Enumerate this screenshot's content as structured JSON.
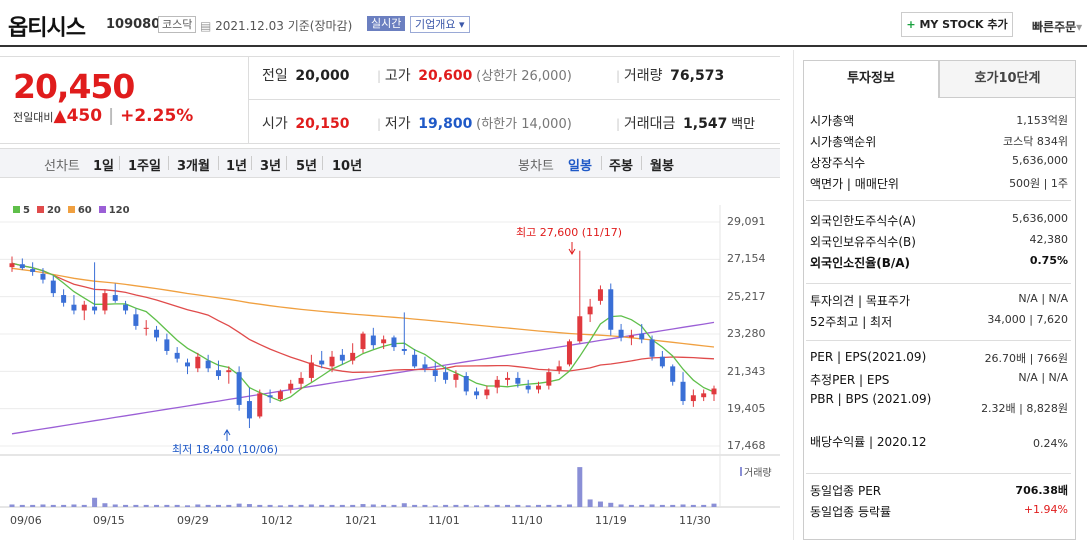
{
  "header": {
    "name": "옵티시스",
    "code": "109080",
    "market": "코스닥",
    "date": "2021.12.03",
    "basis": "기준(장마감)",
    "realtime": "실시간",
    "overview": "기업개요",
    "mystock": "MY STOCK 추가",
    "quick": "빠른주문"
  },
  "price": {
    "current": "20,450",
    "prev_label": "전일대비",
    "change": "450",
    "change_pct": "+2.25%"
  },
  "stats": {
    "prev_label": "전일",
    "prev": "20,000",
    "high_label": "고가",
    "high": "20,600",
    "upper_limit": "(상한가 26,000)",
    "volume_label": "거래량",
    "volume": "76,573",
    "open_label": "시가",
    "open": "20,150",
    "low_label": "저가",
    "low": "19,800",
    "lower_limit": "(하한가 14,000)",
    "amount_label": "거래대금",
    "amount": "1,547",
    "amount_unit": "백만"
  },
  "chart_tabs": {
    "line_label": "선차트",
    "line": [
      "1일",
      "1주일",
      "3개월",
      "1년",
      "3년",
      "5년",
      "10년"
    ],
    "candle_label": "봉차트",
    "candle": [
      "일봉",
      "주봉",
      "월봉"
    ]
  },
  "chart_data": {
    "type": "candlestick",
    "legend": [
      "5",
      "20",
      "60",
      "120"
    ],
    "legend_colors": [
      "#5fbf4a",
      "#e04b4b",
      "#f0a040",
      "#9b5fd6"
    ],
    "y_ticks": [
      "29,091",
      "27,154",
      "25,217",
      "23,280",
      "21,343",
      "19,405",
      "17,468"
    ],
    "x_ticks": [
      "09/06",
      "09/15",
      "09/29",
      "10/12",
      "10/21",
      "11/01",
      "11/10",
      "11/19",
      "11/30"
    ],
    "volume_label": "거래량",
    "high_ann": "최고 27,600 (11/17)",
    "low_ann": "최저 18,400 (10/06)",
    "candles": [
      [
        26750,
        27300,
        26500,
        26950
      ],
      [
        26900,
        27200,
        26600,
        26700
      ],
      [
        26650,
        27000,
        26300,
        26500
      ],
      [
        26400,
        26700,
        25900,
        26100
      ],
      [
        26050,
        26300,
        25200,
        25400
      ],
      [
        25300,
        25600,
        24700,
        24900
      ],
      [
        24800,
        25300,
        24300,
        24500
      ],
      [
        24500,
        25000,
        24000,
        24800
      ],
      [
        24700,
        27000,
        24300,
        24500
      ],
      [
        24500,
        25600,
        24300,
        25400
      ],
      [
        25300,
        25900,
        24900,
        25000
      ],
      [
        24800,
        25000,
        24300,
        24500
      ],
      [
        24300,
        24600,
        23500,
        23700
      ],
      [
        23600,
        24000,
        23200,
        23600
      ],
      [
        23500,
        23700,
        22900,
        23100
      ],
      [
        23000,
        23300,
        22200,
        22400
      ],
      [
        22300,
        22600,
        21800,
        22000
      ],
      [
        21800,
        22000,
        21200,
        21600
      ],
      [
        21500,
        22300,
        21300,
        22100
      ],
      [
        21900,
        22200,
        21300,
        21500
      ],
      [
        21400,
        21900,
        20900,
        21100
      ],
      [
        21300,
        21600,
        20700,
        21400
      ],
      [
        21300,
        21600,
        19300,
        19600
      ],
      [
        19800,
        20500,
        18400,
        18900
      ],
      [
        19000,
        20400,
        18900,
        20200
      ],
      [
        20100,
        20400,
        19700,
        20000
      ],
      [
        19900,
        20400,
        19800,
        20300
      ],
      [
        20400,
        20900,
        20200,
        20700
      ],
      [
        20700,
        21300,
        20400,
        21000
      ],
      [
        21000,
        22200,
        20800,
        21800
      ],
      [
        21900,
        22400,
        21500,
        21700
      ],
      [
        21600,
        22400,
        21300,
        22100
      ],
      [
        22200,
        22500,
        21700,
        21900
      ],
      [
        21900,
        22800,
        21700,
        22300
      ],
      [
        22500,
        23400,
        22300,
        23300
      ],
      [
        23200,
        23600,
        22500,
        22700
      ],
      [
        22800,
        23200,
        22500,
        23000
      ],
      [
        23100,
        23200,
        22400,
        22600
      ],
      [
        22500,
        24400,
        22200,
        22400
      ],
      [
        22200,
        22500,
        21500,
        21600
      ],
      [
        21700,
        22100,
        21300,
        21500
      ],
      [
        21400,
        21800,
        20800,
        21100
      ],
      [
        21300,
        21600,
        20700,
        20900
      ],
      [
        20900,
        21400,
        20500,
        21200
      ],
      [
        21100,
        21300,
        20100,
        20300
      ],
      [
        20300,
        20500,
        19900,
        20100
      ],
      [
        20100,
        20600,
        19900,
        20400
      ],
      [
        20500,
        21100,
        20200,
        20900
      ],
      [
        20900,
        21300,
        20600,
        21000
      ],
      [
        21000,
        21300,
        20500,
        20700
      ],
      [
        20600,
        20900,
        20200,
        20400
      ],
      [
        20400,
        20800,
        20200,
        20600
      ],
      [
        20600,
        21500,
        20400,
        21300
      ],
      [
        21400,
        21900,
        21200,
        21600
      ],
      [
        21700,
        23000,
        21600,
        22900
      ],
      [
        22900,
        27600,
        22800,
        24200
      ],
      [
        24300,
        25100,
        23900,
        24700
      ],
      [
        25000,
        25800,
        24800,
        25600
      ],
      [
        25600,
        25900,
        23200,
        23500
      ],
      [
        23500,
        23800,
        22900,
        23100
      ],
      [
        23100,
        23500,
        22700,
        23200
      ],
      [
        23300,
        23800,
        22800,
        23000
      ],
      [
        23000,
        23200,
        21900,
        22100
      ],
      [
        22100,
        22400,
        21500,
        21600
      ],
      [
        21600,
        21700,
        20600,
        20800
      ],
      [
        20800,
        21300,
        19600,
        19800
      ],
      [
        19800,
        20400,
        19500,
        20100
      ],
      [
        20000,
        20400,
        19800,
        20200
      ],
      [
        20150,
        20600,
        19800,
        20450
      ]
    ],
    "volumes": [
      0.06,
      0.05,
      0.05,
      0.06,
      0.05,
      0.05,
      0.06,
      0.05,
      0.22,
      0.09,
      0.06,
      0.05,
      0.05,
      0.05,
      0.05,
      0.05,
      0.05,
      0.04,
      0.06,
      0.05,
      0.05,
      0.05,
      0.08,
      0.07,
      0.05,
      0.05,
      0.04,
      0.05,
      0.05,
      0.06,
      0.05,
      0.05,
      0.05,
      0.05,
      0.07,
      0.06,
      0.05,
      0.05,
      0.09,
      0.05,
      0.05,
      0.04,
      0.05,
      0.05,
      0.05,
      0.04,
      0.05,
      0.05,
      0.05,
      0.05,
      0.04,
      0.05,
      0.05,
      0.05,
      0.06,
      0.95,
      0.18,
      0.13,
      0.1,
      0.06,
      0.05,
      0.05,
      0.06,
      0.05,
      0.05,
      0.06,
      0.05,
      0.05,
      0.08
    ]
  },
  "side": {
    "tab_info": "투자정보",
    "tab_quote": "호가10단계",
    "rows1": [
      [
        "시가총액",
        "1,153억원"
      ],
      [
        "시가총액순위",
        "코스닥 834위"
      ],
      [
        "상장주식수",
        "5,636,000"
      ],
      [
        "액면가 | 매매단위",
        "500원 | 1주"
      ]
    ],
    "rows2": [
      [
        "외국인한도주식수(A)",
        "5,636,000"
      ],
      [
        "외국인보유주식수(B)",
        "42,380"
      ],
      [
        "외국인소진율(B/A)",
        "0.75%"
      ]
    ],
    "rows3": [
      [
        "투자의견 | 목표주가",
        "N/A | N/A"
      ],
      [
        "52주최고 | 최저",
        "34,000 | 7,620"
      ]
    ],
    "rows4": [
      [
        "PER | EPS(2021.09)",
        "26.70배 | 766원"
      ],
      [
        "추정PER | EPS",
        "N/A | N/A"
      ],
      [
        "PBR | BPS (2021.09)",
        "2.32배 | 8,828원"
      ],
      [
        "배당수익률 | 2020.12",
        "0.24%"
      ]
    ],
    "rows5": [
      [
        "동일업종 PER",
        "706.38배"
      ],
      [
        "동일업종 등락률",
        "+1.94%"
      ]
    ]
  }
}
